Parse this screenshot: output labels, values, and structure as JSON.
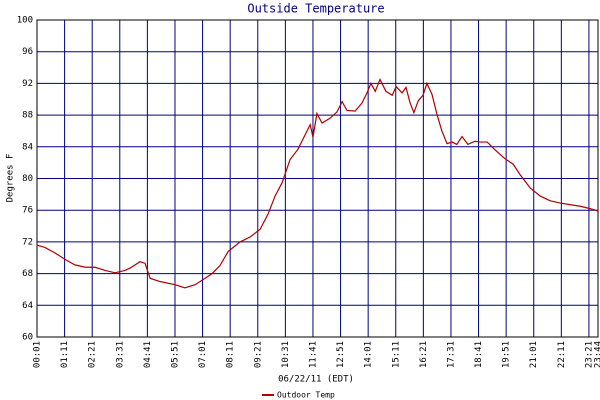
{
  "chart_data": {
    "type": "line",
    "title": "Outside Temperature",
    "xlabel": "06/22/11 (EDT)",
    "ylabel": "Degrees F",
    "xlim": [
      1,
      1424
    ],
    "ylim": [
      60,
      100
    ],
    "yticks": [
      60,
      64,
      68,
      72,
      76,
      80,
      84,
      88,
      92,
      96,
      100
    ],
    "xticks": [
      {
        "value": 1,
        "label": "00:01"
      },
      {
        "value": 71,
        "label": "01:11"
      },
      {
        "value": 141,
        "label": "02:21"
      },
      {
        "value": 211,
        "label": "03:31"
      },
      {
        "value": 281,
        "label": "04:41"
      },
      {
        "value": 351,
        "label": "05:51"
      },
      {
        "value": 421,
        "label": "07:01"
      },
      {
        "value": 491,
        "label": "08:11"
      },
      {
        "value": 561,
        "label": "09:21"
      },
      {
        "value": 631,
        "label": "10:31"
      },
      {
        "value": 701,
        "label": "11:41"
      },
      {
        "value": 771,
        "label": "12:51"
      },
      {
        "value": 841,
        "label": "14:01"
      },
      {
        "value": 911,
        "label": "15:11"
      },
      {
        "value": 981,
        "label": "16:21"
      },
      {
        "value": 1051,
        "label": "17:31"
      },
      {
        "value": 1121,
        "label": "18:41"
      },
      {
        "value": 1191,
        "label": "19:51"
      },
      {
        "value": 1261,
        "label": "21:01"
      },
      {
        "value": 1331,
        "label": "22:11"
      },
      {
        "value": 1401,
        "label": "23:21"
      },
      {
        "value": 1424,
        "label": "23:44"
      }
    ],
    "grid": true,
    "x": [
      1,
      21,
      47,
      72,
      97,
      123,
      148,
      174,
      199,
      224,
      237,
      250,
      262,
      275,
      288,
      313,
      351,
      376,
      402,
      427,
      445,
      465,
      486,
      516,
      541,
      567,
      587,
      605,
      623,
      643,
      663,
      681,
      694,
      701,
      711,
      724,
      744,
      762,
      775,
      787,
      808,
      825,
      838,
      848,
      859,
      871,
      886,
      902,
      912,
      927,
      937,
      947,
      957,
      968,
      980,
      990,
      1003,
      1016,
      1028,
      1041,
      1054,
      1066,
      1079,
      1094,
      1112,
      1125,
      1143,
      1163,
      1188,
      1209,
      1226,
      1252,
      1277,
      1302,
      1328,
      1353,
      1379,
      1404,
      1424
    ],
    "series": [
      {
        "name": "Outdoor Temp",
        "color": "#b00000",
        "values": [
          71.6,
          71.3,
          70.6,
          69.8,
          69.1,
          68.8,
          68.8,
          68.4,
          68.1,
          68.4,
          68.7,
          69.1,
          69.5,
          69.3,
          67.4,
          67.0,
          66.6,
          66.2,
          66.6,
          67.4,
          68.0,
          69.0,
          70.8,
          72.0,
          72.6,
          73.6,
          75.5,
          77.8,
          79.5,
          82.4,
          83.7,
          85.5,
          86.8,
          85.2,
          88.2,
          87.0,
          87.6,
          88.4,
          89.7,
          88.6,
          88.5,
          89.5,
          90.8,
          92.0,
          91.0,
          92.5,
          91.0,
          90.5,
          91.6,
          90.8,
          91.5,
          89.6,
          88.3,
          89.8,
          90.5,
          92.0,
          90.6,
          88.0,
          86.0,
          84.4,
          84.6,
          84.3,
          85.3,
          84.3,
          84.7,
          84.6,
          84.6,
          83.6,
          82.5,
          81.8,
          80.5,
          78.8,
          77.8,
          77.2,
          76.9,
          76.7,
          76.5,
          76.2,
          75.9
        ]
      }
    ]
  }
}
